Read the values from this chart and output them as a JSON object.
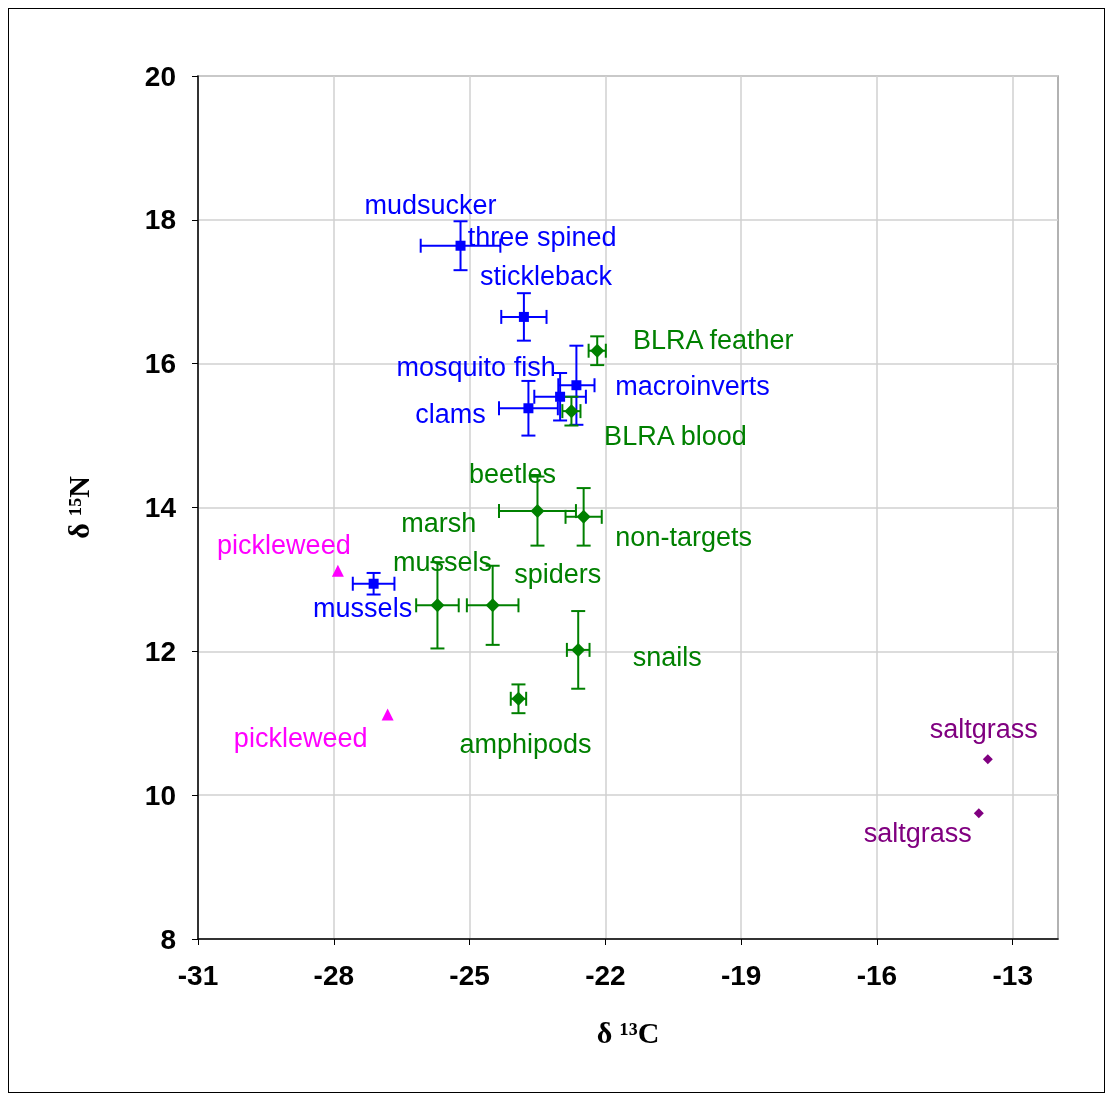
{
  "chart_data": {
    "type": "scatter",
    "xlabel": "δ ¹³C",
    "ylabel": "δ ¹⁵N",
    "xlim": [
      -31,
      -12
    ],
    "ylim": [
      8,
      20
    ],
    "xticks": [
      -31,
      -28,
      -25,
      -22,
      -19,
      -16,
      -13
    ],
    "yticks": [
      8,
      10,
      12,
      14,
      16,
      18,
      20
    ],
    "grid": true,
    "series": [
      {
        "color": "#0000ff",
        "marker": "square",
        "x": [
          -25.2,
          -23.8,
          -22.64,
          -23.0,
          -23.7,
          -27.12
        ],
        "values": [
          17.64,
          16.65,
          15.7,
          15.54,
          15.38,
          12.94
        ],
        "xerrors": [
          0.88,
          0.5,
          0.4,
          0.57,
          0.65,
          0.46
        ],
        "errors": [
          0.34,
          0.33,
          0.55,
          0.33,
          0.38,
          0.15
        ],
        "value_labels": [
          "mudsucker",
          "three spined stickleback",
          "macroinverts",
          "mosquito fish",
          "clams",
          "mussels"
        ]
      },
      {
        "color": "#008000",
        "marker": "diamond",
        "x": [
          -22.18,
          -22.75,
          -23.5,
          -22.48,
          -25.71,
          -24.49,
          -22.6,
          -23.92
        ],
        "values": [
          16.18,
          15.34,
          13.95,
          13.87,
          12.64,
          12.64,
          12.02,
          11.34
        ],
        "xerrors": [
          0.19,
          0.2,
          0.85,
          0.4,
          0.47,
          0.57,
          0.25,
          0.17
        ],
        "errors": [
          0.2,
          0.2,
          0.48,
          0.4,
          0.6,
          0.55,
          0.54,
          0.2
        ],
        "value_labels": [
          "BLRA feather",
          "BLRA blood",
          "beetles",
          "non-targets",
          "marsh mussels",
          "spiders",
          "snails",
          "amphipods"
        ]
      },
      {
        "color": "#ff00ff",
        "marker": "triangle",
        "x": [
          -27.91,
          -26.81
        ],
        "values": [
          13.12,
          11.12
        ],
        "value_labels": [
          "pickleweed",
          "pickleweed"
        ]
      },
      {
        "color": "#800080",
        "marker": "diamond",
        "x": [
          -13.55,
          -13.75
        ],
        "values": [
          10.5,
          9.75
        ],
        "value_labels": [
          "saltgrass",
          "saltgrass"
        ]
      }
    ]
  }
}
